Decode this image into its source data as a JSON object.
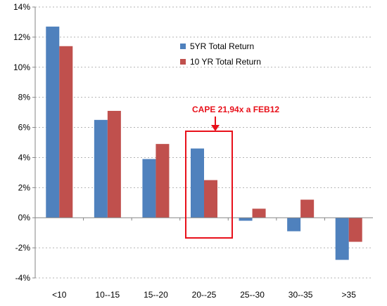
{
  "chart_data": {
    "type": "bar",
    "categories": [
      "<10",
      "10--15",
      "15--20",
      "20--25",
      "25--30",
      "30--35",
      ">35"
    ],
    "series": [
      {
        "name": "5YR Total Return",
        "values": [
          12.7,
          6.5,
          3.9,
          4.6,
          -0.2,
          -0.9,
          -2.8
        ],
        "color": "#4f81bd"
      },
      {
        "name": "10 YR Total Return",
        "values": [
          11.4,
          7.1,
          4.9,
          2.5,
          0.6,
          1.2,
          -1.6
        ],
        "color": "#c0504d"
      }
    ],
    "yticks": [
      "14%",
      "12%",
      "10%",
      "8%",
      "6%",
      "4%",
      "2%",
      "0%",
      "-2%",
      "-4%"
    ],
    "ylim": [
      -4,
      14
    ],
    "grid": true,
    "legend_position": "top-right",
    "annotation": {
      "text": "CAPE 21,94x  a FEB12",
      "target_category": "20--25",
      "color": "#e8101a"
    }
  }
}
